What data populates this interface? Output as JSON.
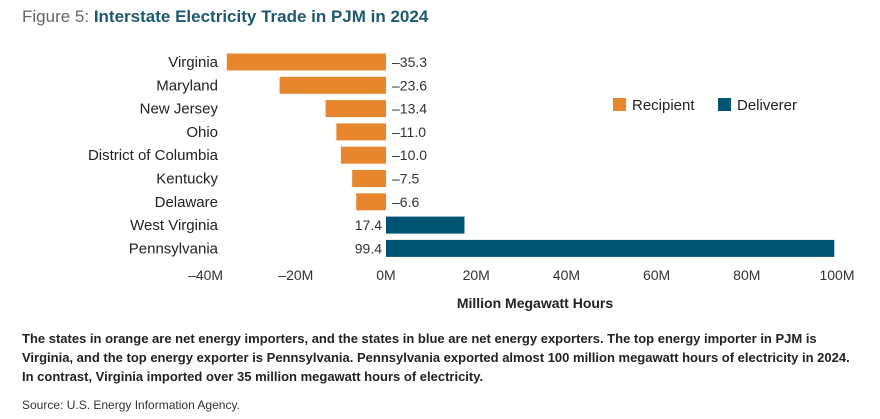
{
  "title": {
    "prefix": "Figure 5:",
    "text": "Interstate Electricity Trade in PJM in 2024"
  },
  "chart_data": {
    "type": "bar",
    "orientation": "horizontal",
    "title": "Interstate Electricity Trade in PJM in 2024",
    "categories": [
      "Virginia",
      "Maryland",
      "New Jersey",
      "Ohio",
      "District of Columbia",
      "Kentucky",
      "Delaware",
      "West Virginia",
      "Pennsylvania"
    ],
    "values": [
      -35.3,
      -23.6,
      -13.4,
      -11.0,
      -10.0,
      -7.5,
      -6.6,
      17.4,
      99.4
    ],
    "value_labels": [
      "–35.3",
      "–23.6",
      "–13.4",
      "–11.0",
      "–10.0",
      "–7.5",
      "–6.6",
      "17.4",
      "99.4"
    ],
    "series": [
      {
        "name": "Recipient",
        "color": "#E8862E"
      },
      {
        "name": "Deliverer",
        "color": "#005473"
      }
    ],
    "xlabel": "Million Megawatt Hours",
    "xlim": [
      -40,
      100
    ],
    "xticks": [
      -40,
      -20,
      0,
      20,
      40,
      60,
      80,
      100
    ],
    "xtick_labels": [
      "–40M",
      "–20M",
      "0M",
      "20M",
      "40M",
      "60M",
      "80M",
      "100M"
    ],
    "grid": false,
    "legend_position": "right"
  },
  "caption": "The states in orange are net energy importers, and the states in blue are net energy exporters. The top energy importer in PJM is Virginia, and the top energy exporter is Pennsylvania. Pennsylvania exported almost 100 million megawatt hours of electricity in 2024. In contrast, Virginia imported over 35 million megawatt hours of electricity.",
  "source": "Source: U.S. Energy Information Agency."
}
